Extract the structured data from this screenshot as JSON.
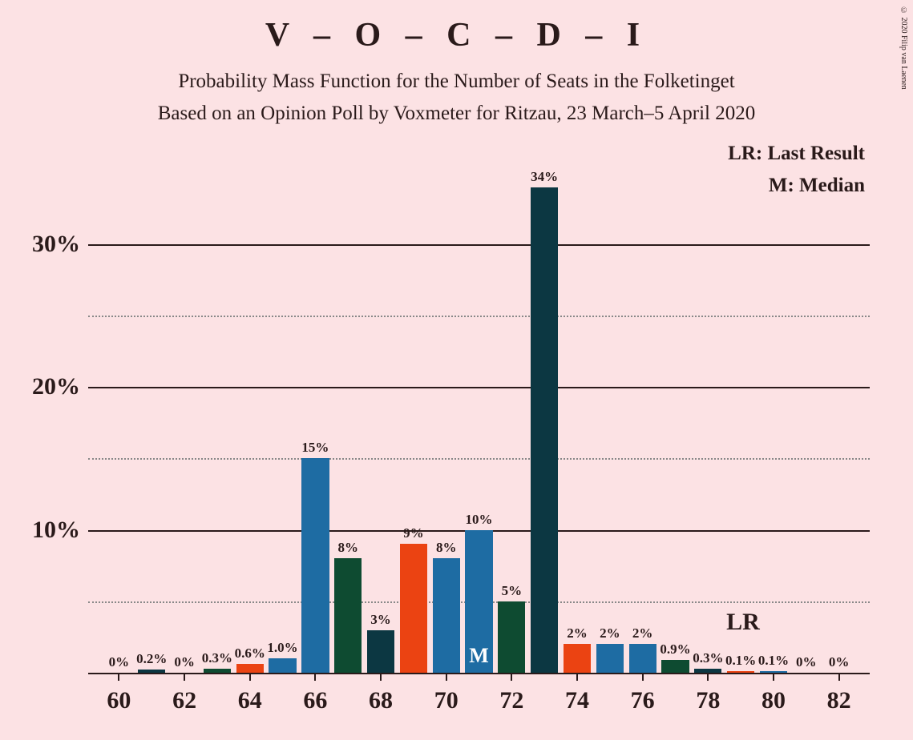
{
  "title": "V – O – C – D – I",
  "subtitle_line1": "Probability Mass Function for the Number of Seats in the Folketinget",
  "subtitle_line2": "Based on an Opinion Poll by Voxmeter for Ritzau, 23 March–5 April 2020",
  "copyright": "© 2020 Filip van Laenen",
  "legend": {
    "lr": "LR: Last Result",
    "m": "M: Median"
  },
  "chart": {
    "type": "bar",
    "background_color": "#fce2e4",
    "text_color": "#2a1a1a",
    "y_max_display": 37,
    "y_ticks_major": [
      10,
      20,
      30
    ],
    "y_ticks_minor": [
      5,
      15,
      25
    ],
    "x_categories": [
      60,
      61,
      62,
      63,
      64,
      65,
      66,
      67,
      68,
      69,
      70,
      71,
      72,
      73,
      74,
      75,
      76,
      77,
      78,
      79,
      80,
      81,
      82
    ],
    "x_labels_shown": [
      60,
      62,
      64,
      66,
      68,
      70,
      72,
      74,
      76,
      78,
      80,
      82
    ],
    "colors": {
      "blue": "#1e6ca3",
      "dark_teal": "#0c3742",
      "dark_green": "#0e4b31",
      "orange": "#eb4312"
    },
    "median_marker": {
      "text": "M",
      "at_category": 71,
      "color": "#ffffff"
    },
    "lr_marker": {
      "text": "LR",
      "at_category": 79
    },
    "bars": [
      {
        "x": 60,
        "value": 0,
        "label": "0%",
        "color": "#1e6ca3"
      },
      {
        "x": 61,
        "value": 0.2,
        "label": "0.2%",
        "color": "#0c3742"
      },
      {
        "x": 62,
        "value": 0,
        "label": "0%",
        "color": "#1e6ca3"
      },
      {
        "x": 63,
        "value": 0.3,
        "label": "0.3%",
        "color": "#0e4b31"
      },
      {
        "x": 64,
        "value": 0.6,
        "label": "0.6%",
        "color": "#eb4312"
      },
      {
        "x": 65,
        "value": 1.0,
        "label": "1.0%",
        "color": "#1e6ca3"
      },
      {
        "x": 66,
        "value": 15,
        "label": "15%",
        "color": "#1e6ca3"
      },
      {
        "x": 67,
        "value": 8,
        "label": "8%",
        "color": "#0e4b31"
      },
      {
        "x": 68,
        "value": 3,
        "label": "3%",
        "color": "#0c3742"
      },
      {
        "x": 69,
        "value": 9,
        "label": "9%",
        "color": "#eb4312"
      },
      {
        "x": 70,
        "value": 8,
        "label": "8%",
        "color": "#1e6ca3"
      },
      {
        "x": 71,
        "value": 10,
        "label": "10%",
        "color": "#1e6ca3"
      },
      {
        "x": 72,
        "value": 5,
        "label": "5%",
        "color": "#0e4b31"
      },
      {
        "x": 73,
        "value": 34,
        "label": "34%",
        "color": "#0c3742"
      },
      {
        "x": 74,
        "value": 2,
        "label": "2%",
        "color": "#eb4312"
      },
      {
        "x": 75,
        "value": 2,
        "label": "2%",
        "color": "#1e6ca3"
      },
      {
        "x": 76,
        "value": 2,
        "label": "2%",
        "color": "#1e6ca3"
      },
      {
        "x": 77,
        "value": 0.9,
        "label": "0.9%",
        "color": "#0e4b31"
      },
      {
        "x": 78,
        "value": 0.3,
        "label": "0.3%",
        "color": "#0c3742"
      },
      {
        "x": 79,
        "value": 0.1,
        "label": "0.1%",
        "color": "#eb4312"
      },
      {
        "x": 80,
        "value": 0.1,
        "label": "0.1%",
        "color": "#1e6ca3"
      },
      {
        "x": 81,
        "value": 0,
        "label": "0%",
        "color": "#1e6ca3"
      },
      {
        "x": 82,
        "value": 0,
        "label": "0%",
        "color": "#1e6ca3"
      }
    ]
  }
}
